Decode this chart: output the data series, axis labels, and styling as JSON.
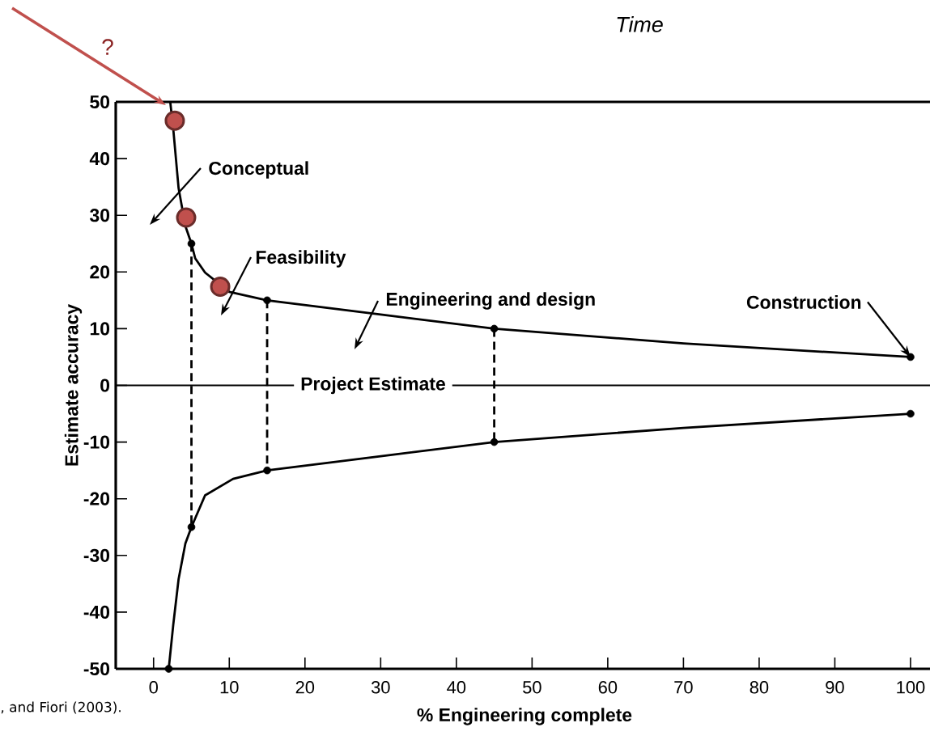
{
  "chart_data": {
    "type": "line",
    "xlabel": "% Engineering complete",
    "ylabel": "Estimate accuracy",
    "xlim": [
      -5,
      103
    ],
    "ylim": [
      -50,
      50
    ],
    "xticks": [
      0,
      10,
      20,
      30,
      40,
      50,
      60,
      70,
      80,
      90,
      100
    ],
    "yticks": [
      -50,
      -40,
      -30,
      -20,
      -10,
      0,
      10,
      20,
      30,
      40,
      50
    ],
    "line_style": "solid",
    "series": [
      {
        "color": "#000000",
        "x": [
          2.2,
          2.6,
          3.3,
          4.2,
          5,
          5.5,
          6.8,
          8.8,
          10,
          15,
          30,
          45,
          70,
          100
        ],
        "values": [
          50,
          45.2,
          34.8,
          28.1,
          25,
          22.4,
          19.9,
          null,
          16.5,
          15,
          12.5,
          10,
          7.4,
          5
        ]
      },
      {
        "color": "#000000",
        "x": [
          2,
          2.6,
          3.3,
          4.2,
          5,
          6.8,
          10.5,
          15,
          30,
          45,
          70,
          100
        ],
        "values": [
          -50,
          -42.2,
          -34.2,
          -27.9,
          -25,
          -19.4,
          -16.5,
          -15,
          -12.5,
          -10,
          -7.5,
          -5
        ]
      },
      {
        "color": "#000000",
        "line_style": "dashed",
        "x": [
          5,
          5
        ],
        "values": [
          25,
          -25
        ]
      },
      {
        "color": "#000000",
        "line_style": "dashed",
        "x": [
          15,
          15
        ],
        "values": [
          15,
          -15
        ]
      },
      {
        "color": "#000000",
        "line_style": "dashed",
        "x": [
          45,
          45
        ],
        "values": [
          10,
          -10
        ]
      },
      {
        "type": "scatter",
        "color": "#000000",
        "x": [
          2,
          5,
          15,
          45,
          100,
          5,
          15,
          45,
          100
        ],
        "values": [
          -50,
          25,
          15,
          10,
          5,
          -25,
          -15,
          -10,
          -5
        ]
      },
      {
        "type": "scatter",
        "color": "#c0504d",
        "x": [
          2.8,
          4.3,
          8.8
        ],
        "values": [
          46.7,
          29.6,
          17.4
        ]
      }
    ],
    "ref_lines": [
      {
        "axis": "y",
        "value": 0,
        "label": "Project Estimate",
        "color": "#000000"
      }
    ],
    "annotations": [
      "Conceptual",
      "Feasibility",
      "Engineering and design",
      {
        "text": "Construction",
        "x": 100,
        "y": 5
      },
      "?",
      "Time",
      ", and Fiori (2003)."
    ]
  }
}
